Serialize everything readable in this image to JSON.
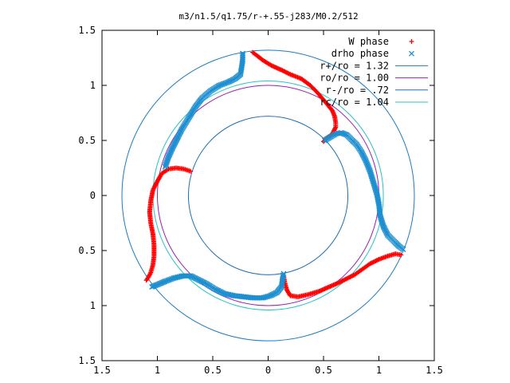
{
  "chart_data": {
    "type": "scatter",
    "title": "m3/n1.5/q1.75/r-+.55-j283/M0.2/512",
    "xlim": [
      -1.5,
      1.5
    ],
    "ylim": [
      -1.5,
      1.5
    ],
    "x_ticks": [
      "1.5",
      "1",
      "0.5",
      "0",
      "0.5",
      "1",
      "1.5"
    ],
    "y_ticks": [
      "1.5",
      "1",
      "0.5",
      "0",
      "0.5",
      "1",
      "1.5"
    ],
    "legend_position": "top-right",
    "grid": false,
    "series": [
      {
        "name": "W phase",
        "marker": "+",
        "color": "#ff0000",
        "arms": [
          [
            [
              -0.14,
              1.3
            ],
            [
              -0.1,
              1.27
            ],
            [
              -0.05,
              1.23
            ],
            [
              0.03,
              1.18
            ],
            [
              0.12,
              1.14
            ],
            [
              0.2,
              1.1
            ],
            [
              0.3,
              1.06
            ],
            [
              0.38,
              1.0
            ],
            [
              0.44,
              0.94
            ],
            [
              0.49,
              0.88
            ],
            [
              0.54,
              0.82
            ],
            [
              0.58,
              0.77
            ],
            [
              0.6,
              0.72
            ],
            [
              0.61,
              0.66
            ],
            [
              0.61,
              0.62
            ],
            [
              0.58,
              0.56
            ],
            [
              0.53,
              0.52
            ],
            [
              0.5,
              0.49
            ]
          ],
          [
            [
              1.2,
              -0.54
            ],
            [
              1.15,
              -0.53
            ],
            [
              1.08,
              -0.55
            ],
            [
              1.0,
              -0.58
            ],
            [
              0.92,
              -0.62
            ],
            [
              0.85,
              -0.67
            ],
            [
              0.78,
              -0.72
            ],
            [
              0.7,
              -0.76
            ],
            [
              0.62,
              -0.8
            ],
            [
              0.55,
              -0.83
            ],
            [
              0.46,
              -0.87
            ],
            [
              0.36,
              -0.9
            ],
            [
              0.27,
              -0.92
            ],
            [
              0.2,
              -0.91
            ],
            [
              0.17,
              -0.86
            ],
            [
              0.15,
              -0.79
            ],
            [
              0.14,
              -0.73
            ]
          ],
          [
            [
              -0.7,
              0.22
            ],
            [
              -0.76,
              0.24
            ],
            [
              -0.83,
              0.25
            ],
            [
              -0.9,
              0.24
            ],
            [
              -0.96,
              0.2
            ],
            [
              -1.0,
              0.13
            ],
            [
              -1.04,
              0.05
            ],
            [
              -1.06,
              -0.05
            ],
            [
              -1.07,
              -0.15
            ],
            [
              -1.06,
              -0.25
            ],
            [
              -1.04,
              -0.35
            ],
            [
              -1.03,
              -0.45
            ],
            [
              -1.03,
              -0.55
            ],
            [
              -1.04,
              -0.63
            ],
            [
              -1.06,
              -0.7
            ],
            [
              -1.08,
              -0.74
            ],
            [
              -1.1,
              -0.77
            ]
          ]
        ]
      },
      {
        "name": "drho phase",
        "marker": "x",
        "color": "#1e8fd0",
        "arms": [
          [
            [
              -0.23,
              1.29
            ],
            [
              -0.23,
              1.23
            ],
            [
              -0.24,
              1.16
            ],
            [
              -0.25,
              1.1
            ],
            [
              -0.3,
              1.06
            ],
            [
              -0.36,
              1.03
            ],
            [
              -0.44,
              1.0
            ],
            [
              -0.52,
              0.95
            ],
            [
              -0.6,
              0.88
            ],
            [
              -0.66,
              0.8
            ],
            [
              -0.72,
              0.7
            ],
            [
              -0.78,
              0.6
            ],
            [
              -0.82,
              0.52
            ],
            [
              -0.86,
              0.44
            ],
            [
              -0.9,
              0.35
            ],
            [
              -0.93,
              0.26
            ]
          ],
          [
            [
              0.51,
              0.5
            ],
            [
              0.56,
              0.53
            ],
            [
              0.61,
              0.56
            ],
            [
              0.66,
              0.57
            ],
            [
              0.71,
              0.55
            ],
            [
              0.76,
              0.5
            ],
            [
              0.8,
              0.46
            ],
            [
              0.84,
              0.4
            ],
            [
              0.88,
              0.32
            ],
            [
              0.92,
              0.22
            ],
            [
              0.95,
              0.12
            ],
            [
              0.98,
              0.02
            ],
            [
              1.0,
              -0.08
            ],
            [
              1.01,
              -0.18
            ],
            [
              1.04,
              -0.28
            ],
            [
              1.08,
              -0.36
            ],
            [
              1.14,
              -0.42
            ],
            [
              1.18,
              -0.46
            ],
            [
              1.22,
              -0.49
            ]
          ],
          [
            [
              0.14,
              -0.71
            ],
            [
              0.13,
              -0.76
            ],
            [
              0.12,
              -0.83
            ],
            [
              0.08,
              -0.88
            ],
            [
              0.02,
              -0.91
            ],
            [
              -0.05,
              -0.93
            ],
            [
              -0.13,
              -0.93
            ],
            [
              -0.22,
              -0.92
            ],
            [
              -0.31,
              -0.91
            ],
            [
              -0.4,
              -0.89
            ],
            [
              -0.48,
              -0.85
            ],
            [
              -0.56,
              -0.8
            ],
            [
              -0.64,
              -0.76
            ],
            [
              -0.7,
              -0.73
            ],
            [
              -0.77,
              -0.73
            ],
            [
              -0.85,
              -0.75
            ],
            [
              -0.93,
              -0.78
            ],
            [
              -1.0,
              -0.81
            ],
            [
              -1.05,
              -0.83
            ]
          ]
        ]
      }
    ],
    "circles": [
      {
        "label": "r+/ro = 1.32",
        "r": 1.32,
        "color": "#1c7bbf"
      },
      {
        "label": "ro/ro = 1.00",
        "r": 1.0,
        "color": "#9b1fb0"
      },
      {
        "label": "r-/ro = .72",
        "r": 0.72,
        "color": "#1c6fb3"
      },
      {
        "label": "rc/ro = 1.04",
        "r": 1.04,
        "color": "#27c3c7"
      }
    ]
  }
}
